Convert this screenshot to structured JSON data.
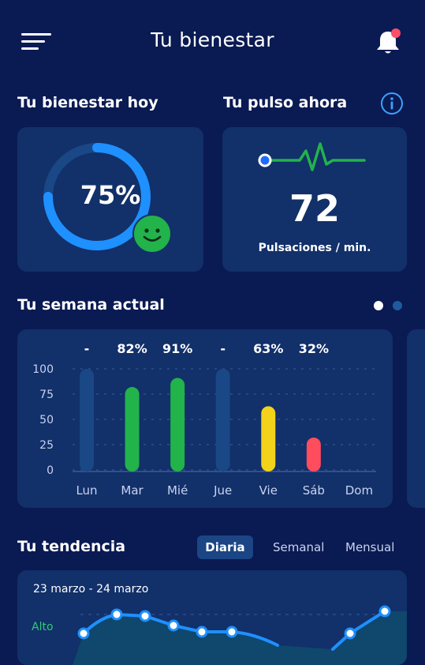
{
  "header": {
    "title": "Tu bienestar",
    "menu_icon": "hamburger-menu-icon",
    "bell_icon": "bell-icon",
    "notification_color": "#ff4d6a"
  },
  "wellbeing": {
    "title": "Tu bienestar hoy",
    "percent_label": "75%",
    "percent": 75,
    "ring_color": "#1e90ff",
    "mood_icon": "smiley-face-icon",
    "mood_color": "#22b34b"
  },
  "pulse": {
    "title": "Tu pulso ahora",
    "info_icon": "info-icon",
    "value": "72",
    "unit": "Pulsaciones / min.",
    "line_color": "#22b34b"
  },
  "week": {
    "title": "Tu semana actual",
    "pager": {
      "pages": 2,
      "active": 0
    },
    "chart_data": {
      "type": "bar",
      "categories": [
        "Lun",
        "Mar",
        "Mié",
        "Jue",
        "Vie",
        "Sáb",
        "Dom"
      ],
      "values": [
        null,
        82,
        91,
        null,
        63,
        32,
        null
      ],
      "value_labels": [
        "-",
        "82%",
        "91%",
        "-",
        "63%",
        "32%",
        ""
      ],
      "bar_colors": [
        "#1a4785",
        "#22b34b",
        "#22b34b",
        "#1a4785",
        "#f2d21b",
        "#ff4d5e",
        "#1a4785"
      ],
      "y_ticks": [
        "100",
        "75",
        "50",
        "25",
        "0"
      ],
      "ylim": [
        0,
        100
      ],
      "grid": true
    }
  },
  "trend": {
    "title": "Tu tendencia",
    "tabs": [
      {
        "label": "Diaria",
        "active": true
      },
      {
        "label": "Semanal",
        "active": false
      },
      {
        "label": "Mensual",
        "active": false
      }
    ],
    "range": "23 marzo - 24 marzo",
    "y_label_top": "Alto",
    "line_color": "#1e90ff"
  }
}
